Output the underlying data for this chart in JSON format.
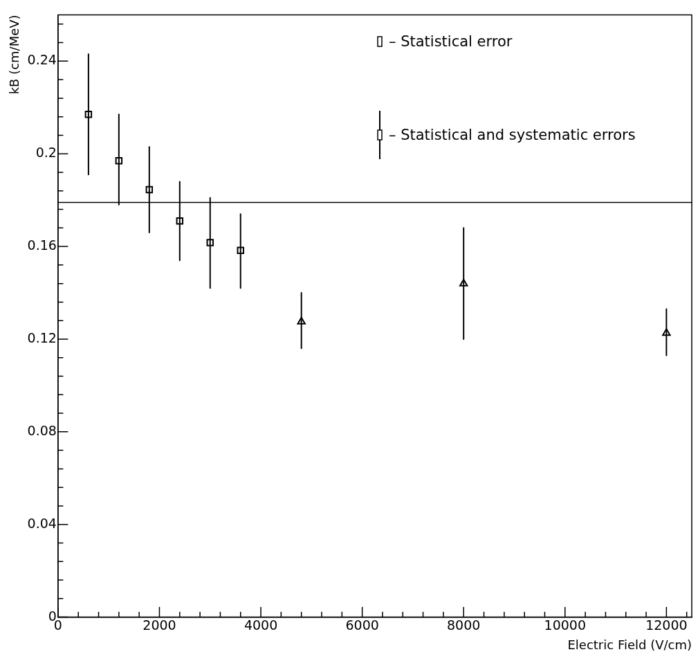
{
  "chart_data": {
    "type": "scatter",
    "xlabel": "Electric Field (V/cm)",
    "ylabel": "kB (cm/MeV)",
    "xlim": [
      0,
      12500
    ],
    "ylim": [
      0,
      0.26
    ],
    "xticks": [
      0,
      {
        "value": 400,
        "label": null
      },
      {
        "value": 800,
        "label": null
      },
      {
        "value": 1200,
        "label": null
      },
      {
        "value": 1600,
        "label": null
      },
      2000,
      {
        "value": 2400,
        "label": null
      },
      {
        "value": 2800,
        "label": null
      },
      {
        "value": 3200,
        "label": null
      },
      {
        "value": 3600,
        "label": null
      },
      4000,
      {
        "value": 4400,
        "label": null
      },
      {
        "value": 4800,
        "label": null
      },
      {
        "value": 5200,
        "label": null
      },
      {
        "value": 5600,
        "label": null
      },
      6000,
      {
        "value": 6400,
        "label": null
      },
      {
        "value": 6800,
        "label": null
      },
      {
        "value": 7200,
        "label": null
      },
      {
        "value": 7600,
        "label": null
      },
      8000,
      {
        "value": 8400,
        "label": null
      },
      {
        "value": 8800,
        "label": null
      },
      {
        "value": 9200,
        "label": null
      },
      {
        "value": 9600,
        "label": null
      },
      10000,
      {
        "value": 10400,
        "label": null
      },
      {
        "value": 10800,
        "label": null
      },
      {
        "value": 11200,
        "label": null
      },
      {
        "value": 11600,
        "label": null
      },
      12000,
      {
        "value": 12400,
        "label": null
      }
    ],
    "yticks": [
      0,
      {
        "value": 0.008,
        "label": null
      },
      {
        "value": 0.016,
        "label": null
      },
      {
        "value": 0.024,
        "label": null
      },
      {
        "value": 0.032,
        "label": null
      },
      0.04,
      {
        "value": 0.048,
        "label": null
      },
      {
        "value": 0.056,
        "label": null
      },
      {
        "value": 0.064,
        "label": null
      },
      {
        "value": 0.072,
        "label": null
      },
      0.08,
      {
        "value": 0.088,
        "label": null
      },
      {
        "value": 0.096,
        "label": null
      },
      {
        "value": 0.104,
        "label": null
      },
      {
        "value": 0.112,
        "label": null
      },
      0.12,
      {
        "value": 0.128,
        "label": null
      },
      {
        "value": 0.136,
        "label": null
      },
      {
        "value": 0.144,
        "label": null
      },
      {
        "value": 0.152,
        "label": null
      },
      0.16,
      {
        "value": 0.168,
        "label": null
      },
      {
        "value": 0.176,
        "label": null
      },
      {
        "value": 0.184,
        "label": null
      },
      {
        "value": 0.192,
        "label": null
      },
      0.2,
      {
        "value": 0.208,
        "label": null
      },
      {
        "value": 0.216,
        "label": null
      },
      {
        "value": 0.224,
        "label": null
      },
      {
        "value": 0.232,
        "label": null
      },
      0.24,
      {
        "value": 0.248,
        "label": null
      },
      {
        "value": 0.256,
        "label": null
      }
    ],
    "series": [
      {
        "color": "#000000",
        "marker": "square",
        "x": [
          600,
          1200,
          1800,
          2400,
          3000,
          3600
        ],
        "values": [
          0.217,
          0.197,
          0.1845,
          0.171,
          0.1617,
          0.1583
        ],
        "errors": [
          [
            0.191,
            0.243
          ],
          [
            0.178,
            0.217
          ],
          [
            0.166,
            0.203
          ],
          [
            0.154,
            0.188
          ],
          [
            0.142,
            0.181
          ],
          [
            0.142,
            0.174
          ]
        ]
      },
      {
        "color": "#000000",
        "marker": "triangle",
        "x": [
          4800,
          8000,
          12000
        ],
        "values": [
          0.1275,
          0.144,
          0.1226
        ],
        "errors": [
          [
            0.116,
            0.14
          ],
          [
            0.12,
            0.168
          ],
          [
            0.113,
            0.133
          ]
        ]
      }
    ],
    "ref_lines": [
      {
        "axis": "y",
        "value": 0.179
      }
    ],
    "annotations": [
      "– Statistical error",
      "– Statistical and systematic errors"
    ]
  }
}
